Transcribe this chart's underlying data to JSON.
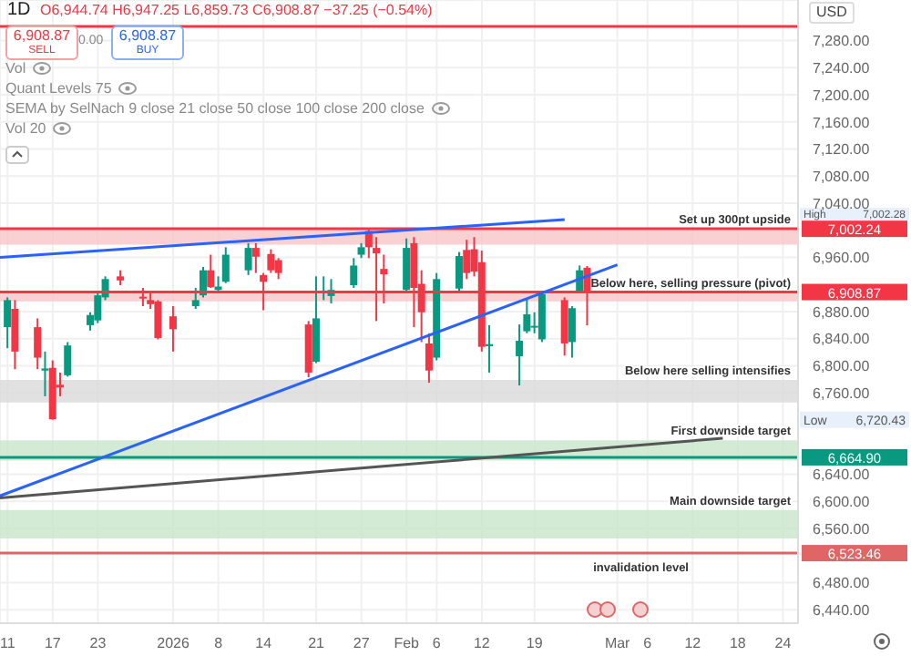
{
  "chart_data": {
    "type": "candlestick",
    "title": "1D",
    "subtitle": "O6,944.74 H6,947.25 L6,859.73 C6,908.87 −37.25 (−0.54%)",
    "annotations": [
      "6,908.87",
      "SELL",
      "0.00",
      "6,908.87",
      "BUY",
      "Vol",
      "Quant Levels 75",
      "SEMA by SelNach 9 close 21 close 50 close 100 close 200 close",
      "Vol 20",
      "USD",
      "High",
      "7,002.28",
      "Low",
      "6,720.43",
      {
        "text": "invalidation level",
        "y": 6523.46
      }
    ],
    "x": [
      "2025-12-11",
      "2025-12-12",
      "2025-12-15",
      "2025-12-16",
      "2025-12-17",
      "2025-12-18",
      "2025-12-19",
      "2025-12-22",
      "2025-12-23",
      "2025-12-24",
      "2025-12-26",
      "2025-12-29",
      "2025-12-30",
      "2025-12-31",
      "2026-01-02",
      "2026-01-05",
      "2026-01-06",
      "2026-01-07",
      "2026-01-08",
      "2026-01-09",
      "2026-01-12",
      "2026-01-13",
      "2026-01-14",
      "2026-01-15",
      "2026-01-16",
      "2026-01-20",
      "2026-01-21",
      "2026-01-22",
      "2026-01-23",
      "2026-01-26",
      "2026-01-27",
      "2026-01-28",
      "2026-01-29",
      "2026-01-30",
      "2026-02-02",
      "2026-02-03",
      "2026-02-04",
      "2026-02-05",
      "2026-02-06",
      "2026-02-09",
      "2026-02-10",
      "2026-02-11",
      "2026-02-12",
      "2026-02-13",
      "2026-02-17",
      "2026-02-18",
      "2026-02-19",
      "2026-02-20",
      "2026-02-23",
      "2026-02-24",
      "2026-02-25",
      "2026-02-26"
    ],
    "ohlc": [
      [
        6857,
        6901,
        6826,
        6897
      ],
      [
        6884,
        6897,
        6795,
        6821
      ],
      [
        6857,
        6870,
        6795,
        6812
      ],
      [
        6793,
        6821,
        6755,
        6796
      ],
      [
        6797,
        6808,
        6720.43,
        6721
      ],
      [
        6772,
        6790,
        6755,
        6768
      ],
      [
        6786,
        6835,
        6784,
        6830
      ],
      [
        6860,
        6879,
        6852,
        6875
      ],
      [
        6867,
        6908,
        6863,
        6904
      ],
      [
        6901,
        6932,
        6897,
        6928
      ],
      [
        6932,
        6941,
        6919,
        6926
      ],
      [
        6902,
        6915,
        6888,
        6901
      ],
      [
        6897,
        6910,
        6884,
        6891
      ],
      [
        6895,
        6897,
        6839,
        6841
      ],
      [
        6873,
        6888,
        6821,
        6854
      ],
      [
        6888,
        6915,
        6884,
        6897
      ],
      [
        6904,
        6946,
        6901,
        6941
      ],
      [
        6941,
        6964,
        6915,
        6916
      ],
      [
        6912,
        6932,
        6910,
        6917
      ],
      [
        6924,
        6975,
        6922,
        6964
      ],
      [
        6941,
        6981,
        6934,
        6974
      ],
      [
        6974,
        6981,
        6937,
        6961
      ],
      [
        6934,
        6937,
        6882,
        6924
      ],
      [
        6965,
        6972,
        6937,
        6941
      ],
      [
        6956,
        6959,
        6928,
        6937
      ],
      [
        6861,
        6866,
        6783,
        6790
      ],
      [
        6806,
        6932,
        6804,
        6870
      ],
      [
        6910,
        6932,
        6897,
        6911
      ],
      [
        6903,
        6928,
        6892,
        6912
      ],
      [
        6919,
        6959,
        6915,
        6948
      ],
      [
        6964,
        6981,
        6959,
        6975
      ],
      [
        6999,
        7002.28,
        6959,
        6975
      ],
      [
        6974,
        6990,
        6866,
        6966
      ],
      [
        6943,
        6964,
        6892,
        6935
      ],
      [
        6912,
        6988,
        6910,
        6974
      ],
      [
        6981,
        6990,
        6857,
        6915
      ],
      [
        6921,
        6941,
        6835,
        6879
      ],
      [
        6833,
        6848,
        6775,
        6793
      ],
      [
        6812,
        6937,
        6808,
        6928
      ],
      [
        6914,
        6968,
        6910,
        6962
      ],
      [
        6971,
        6986,
        6928,
        6937
      ],
      [
        6972,
        6990,
        6932,
        6939
      ],
      [
        6953,
        6970,
        6821,
        6828
      ],
      [
        6829,
        6860,
        6790,
        6832
      ],
      [
        6814,
        6861,
        6771,
        6837
      ],
      [
        6851,
        6899,
        6848,
        6876
      ],
      [
        6858,
        6879,
        6848,
        6859
      ],
      [
        6839,
        6910,
        6835,
        6906
      ],
      [
        6897,
        6901,
        6815,
        6833
      ],
      [
        6835,
        6888,
        6812,
        6885
      ],
      [
        6910,
        6948,
        6908,
        6941
      ],
      [
        6944.74,
        6947.25,
        6859.73,
        6908.87
      ]
    ],
    "colors": [
      "#089981",
      "#f23645",
      "#f23645",
      "#089981",
      "#f23645",
      "#f23645",
      "#089981",
      "#089981",
      "#089981",
      "#089981",
      "#f23645",
      "#f23645",
      "#f23645",
      "#f23645",
      "#f23645",
      "#089981",
      "#089981",
      "#f23645",
      "#089981",
      "#089981",
      "#089981",
      "#f23645",
      "#f23645",
      "#f23645",
      "#f23645",
      "#f23645",
      "#089981",
      "#089981",
      "#089981",
      "#089981",
      "#089981",
      "#f23645",
      "#f23645",
      "#f23645",
      "#089981",
      "#f23645",
      "#f23645",
      "#f23645",
      "#089981",
      "#089981",
      "#f23645",
      "#f23645",
      "#f23645",
      "#089981",
      "#089981",
      "#089981",
      "#089981",
      "#089981",
      "#f23645",
      "#089981",
      "#089981",
      "#f23645"
    ],
    "series": [
      {
        "type": "line",
        "color": "#2962ff",
        "x": [
          "2025-12-10",
          "2026-02-23"
        ],
        "values": [
          6960,
          7016
        ]
      },
      {
        "type": "line",
        "color": "#2962ff",
        "x": [
          "2025-12-10",
          "2026-03-02"
        ],
        "values": [
          6608,
          6949
        ]
      },
      {
        "type": "line",
        "color": "#555555",
        "x": [
          "2025-12-10",
          "2026-03-16"
        ],
        "values": [
          6605,
          6693
        ]
      }
    ],
    "bands": [
      {
        "axis": "y",
        "from": 6979,
        "to": 7002.24,
        "label": "Set up 300pt upside",
        "color": "#f7c5c8"
      },
      {
        "axis": "y",
        "from": 6895,
        "to": 6908,
        "label": "Below here, selling pressure (pivot)",
        "color": "#f7c5c8"
      },
      {
        "axis": "y",
        "from": 6746,
        "to": 6779,
        "label": "Below here selling intensifies",
        "color": "#d9d9d9"
      },
      {
        "axis": "y",
        "from": 6660,
        "to": 6690,
        "label": "First downside target",
        "color": "#c8e6c9"
      },
      {
        "axis": "y",
        "from": 6545,
        "to": 6587,
        "label": "Main downside target",
        "color": "#c8e6c9"
      }
    ],
    "ref_lines": [
      {
        "axis": "y",
        "value": 7301,
        "color": "#f23645"
      },
      {
        "axis": "y",
        "value": 7002.24,
        "label": "7,002.24",
        "color": "#f23645"
      },
      {
        "axis": "y",
        "value": 6908.87,
        "label": "6,908.87",
        "color": "#f23645"
      },
      {
        "axis": "y",
        "value": 6664.9,
        "label": "6,664.90",
        "color": "#089981"
      },
      {
        "axis": "y",
        "value": 6523.46,
        "label": "6,523.46",
        "color": "#e06666"
      }
    ],
    "xlim": [
      "2025-12-10",
      "2026-03-26"
    ],
    "xticks": [
      {
        "value": "2025-12-11",
        "label": "11"
      },
      {
        "value": "2025-12-17",
        "label": "17"
      },
      {
        "value": "2025-12-23",
        "label": "23"
      },
      {
        "value": "2026-01-02",
        "label": "2026"
      },
      {
        "value": "2026-01-08",
        "label": "8"
      },
      {
        "value": "2026-01-14",
        "label": "14"
      },
      {
        "value": "2026-01-21",
        "label": "21"
      },
      {
        "value": "2026-01-27",
        "label": "27"
      },
      {
        "value": "2026-02-02",
        "label": "Feb"
      },
      {
        "value": "2026-02-06",
        "label": "6"
      },
      {
        "value": "2026-02-12",
        "label": "12"
      },
      {
        "value": "2026-02-19",
        "label": "19"
      },
      {
        "value": "2026-03-02",
        "label": "Mar"
      },
      {
        "value": "2026-03-06",
        "label": "6"
      },
      {
        "value": "2026-03-12",
        "label": "12"
      },
      {
        "value": "2026-03-18",
        "label": "18"
      },
      {
        "value": "2026-03-24",
        "label": "24"
      }
    ],
    "ylim": [
      6420,
      7340
    ],
    "yticks": [
      {
        "value": 6440,
        "label": "6,440.00"
      },
      {
        "value": 6480,
        "label": "6,480.00"
      },
      {
        "value": 6560,
        "label": "6,560.00"
      },
      {
        "value": 6600,
        "label": "6,600.00"
      },
      {
        "value": 6640,
        "label": "6,640.00"
      },
      {
        "value": 6760,
        "label": "6,760.00"
      },
      {
        "value": 6800,
        "label": "6,800.00"
      },
      {
        "value": 6840,
        "label": "6,840.00"
      },
      {
        "value": 6880,
        "label": "6,880.00"
      },
      {
        "value": 6960,
        "label": "6,960.00"
      },
      {
        "value": 7040,
        "label": "7,040.00"
      },
      {
        "value": 7080,
        "label": "7,080.00"
      },
      {
        "value": 7120,
        "label": "7,120.00"
      },
      {
        "value": 7160,
        "label": "7,160.00"
      },
      {
        "value": 7200,
        "label": "7,200.00"
      },
      {
        "value": 7240,
        "label": "7,240.00"
      },
      {
        "value": 7280,
        "label": "7,280.00"
      }
    ],
    "grid": true
  }
}
